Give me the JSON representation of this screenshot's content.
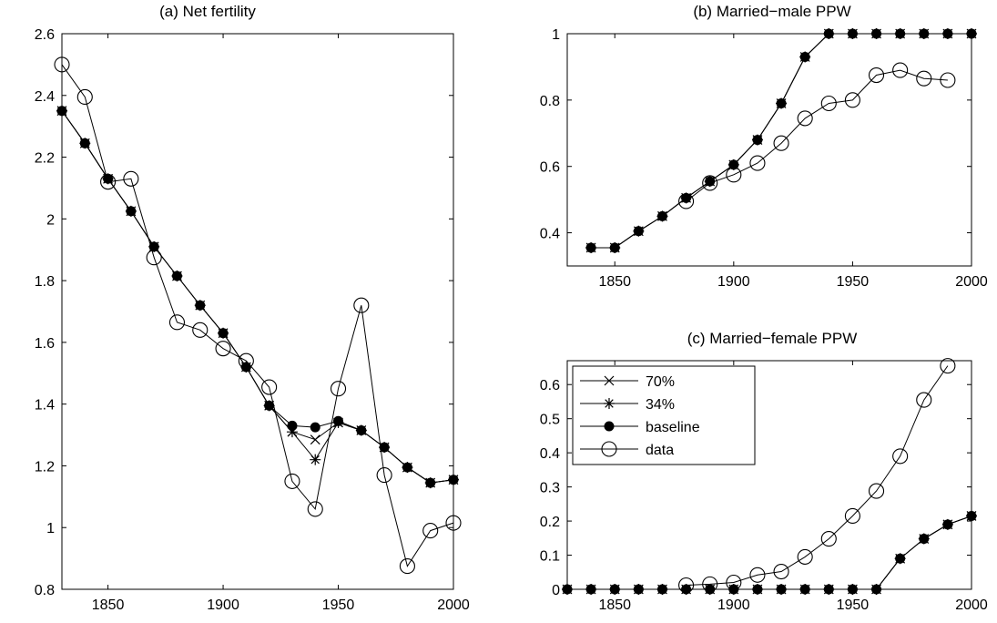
{
  "chart_data": [
    {
      "type": "line",
      "title": "(a) Net fertility",
      "xlabel": "",
      "ylabel": "",
      "xlim": [
        1830,
        2000
      ],
      "ylim": [
        0.8,
        2.6
      ],
      "xticks": [
        1850,
        1900,
        1950,
        2000
      ],
      "yticks": [
        0.8,
        1,
        1.2,
        1.4,
        1.6,
        1.8,
        2,
        2.2,
        2.4,
        2.6
      ],
      "grid": false,
      "series": [
        {
          "name": "70%",
          "marker": "x",
          "x": [
            1830,
            1840,
            1850,
            1860,
            1870,
            1880,
            1890,
            1900,
            1910,
            1920,
            1930,
            1940,
            1950,
            1960,
            1970,
            1980,
            1990,
            2000
          ],
          "y": [
            2.35,
            2.245,
            2.13,
            2.025,
            1.91,
            1.815,
            1.72,
            1.63,
            1.52,
            1.395,
            1.31,
            1.285,
            1.34,
            1.315,
            1.26,
            1.195,
            1.145,
            1.155
          ]
        },
        {
          "name": "34%",
          "marker": "star",
          "x": [
            1830,
            1840,
            1850,
            1860,
            1870,
            1880,
            1890,
            1900,
            1910,
            1920,
            1930,
            1940,
            1950,
            1960,
            1970,
            1980,
            1990,
            2000
          ],
          "y": [
            2.35,
            2.245,
            2.13,
            2.025,
            1.91,
            1.815,
            1.72,
            1.63,
            1.52,
            1.395,
            1.31,
            1.22,
            1.34,
            1.315,
            1.26,
            1.195,
            1.145,
            1.155
          ]
        },
        {
          "name": "baseline",
          "marker": "filled-circle",
          "x": [
            1830,
            1840,
            1850,
            1860,
            1870,
            1880,
            1890,
            1900,
            1910,
            1920,
            1930,
            1940,
            1950,
            1960,
            1970,
            1980,
            1990,
            2000
          ],
          "y": [
            2.35,
            2.245,
            2.13,
            2.025,
            1.91,
            1.815,
            1.72,
            1.63,
            1.52,
            1.395,
            1.33,
            1.325,
            1.345,
            1.315,
            1.26,
            1.195,
            1.145,
            1.155
          ]
        },
        {
          "name": "data",
          "marker": "open-circle",
          "x": [
            1830,
            1840,
            1850,
            1860,
            1870,
            1880,
            1890,
            1900,
            1910,
            1920,
            1930,
            1940,
            1950,
            1960,
            1970,
            1980,
            1990,
            2000
          ],
          "y": [
            2.5,
            2.395,
            2.12,
            2.13,
            1.875,
            1.665,
            1.64,
            1.58,
            1.54,
            1.455,
            1.15,
            1.06,
            1.45,
            1.72,
            1.17,
            0.875,
            0.99,
            1.015
          ]
        }
      ]
    },
    {
      "type": "line",
      "title": "(b) Married−male PPW",
      "xlabel": "",
      "ylabel": "",
      "xlim": [
        1830,
        2000
      ],
      "ylim": [
        0.3,
        1.0
      ],
      "xticks": [
        1850,
        1900,
        1950,
        2000
      ],
      "yticks": [
        0.4,
        0.6,
        0.8,
        1
      ],
      "grid": false,
      "series": [
        {
          "name": "70%",
          "marker": "x",
          "x": [
            1840,
            1850,
            1860,
            1870,
            1880,
            1890,
            1900,
            1910,
            1920,
            1930,
            1940,
            1950,
            1960,
            1970,
            1980,
            1990,
            2000
          ],
          "y": [
            0.355,
            0.355,
            0.405,
            0.45,
            0.505,
            0.555,
            0.605,
            0.68,
            0.79,
            0.93,
            1,
            1,
            1,
            1,
            1,
            1,
            1
          ]
        },
        {
          "name": "34%",
          "marker": "star",
          "x": [
            1840,
            1850,
            1860,
            1870,
            1880,
            1890,
            1900,
            1910,
            1920,
            1930,
            1940,
            1950,
            1960,
            1970,
            1980,
            1990,
            2000
          ],
          "y": [
            0.355,
            0.355,
            0.405,
            0.45,
            0.505,
            0.555,
            0.605,
            0.68,
            0.79,
            0.93,
            1,
            1,
            1,
            1,
            1,
            1,
            1
          ]
        },
        {
          "name": "baseline",
          "marker": "filled-circle",
          "x": [
            1840,
            1850,
            1860,
            1870,
            1880,
            1890,
            1900,
            1910,
            1920,
            1930,
            1940,
            1950,
            1960,
            1970,
            1980,
            1990,
            2000
          ],
          "y": [
            0.355,
            0.355,
            0.405,
            0.45,
            0.505,
            0.555,
            0.605,
            0.68,
            0.79,
            0.93,
            1,
            1,
            1,
            1,
            1,
            1,
            1
          ]
        },
        {
          "name": "data",
          "marker": "open-circle",
          "x": [
            1880,
            1890,
            1900,
            1910,
            1920,
            1930,
            1940,
            1950,
            1960,
            1970,
            1980,
            1990
          ],
          "y": [
            0.495,
            0.55,
            0.575,
            0.61,
            0.67,
            0.745,
            0.79,
            0.8,
            0.875,
            0.89,
            0.865,
            0.86
          ]
        }
      ]
    },
    {
      "type": "line",
      "title": "(c) Married−female PPW",
      "xlabel": "",
      "ylabel": "",
      "xlim": [
        1830,
        2000
      ],
      "ylim": [
        0,
        0.67
      ],
      "xticks": [
        1850,
        1900,
        1950,
        2000
      ],
      "yticks": [
        0,
        0.1,
        0.2,
        0.3,
        0.4,
        0.5,
        0.6
      ],
      "grid": false,
      "legend": {
        "placement": "top-left",
        "entries": [
          "70%",
          "34%",
          "baseline",
          "data"
        ]
      },
      "series": [
        {
          "name": "70%",
          "marker": "x",
          "x": [
            1830,
            1840,
            1850,
            1860,
            1870,
            1880,
            1890,
            1900,
            1910,
            1920,
            1930,
            1940,
            1950,
            1960,
            1970,
            1980,
            1990,
            2000
          ],
          "y": [
            0,
            0,
            0,
            0,
            0,
            0,
            0,
            0,
            0,
            0,
            0,
            0,
            0,
            0,
            0.09,
            0.148,
            0.19,
            0.215
          ]
        },
        {
          "name": "34%",
          "marker": "star",
          "x": [
            1830,
            1840,
            1850,
            1860,
            1870,
            1880,
            1890,
            1900,
            1910,
            1920,
            1930,
            1940,
            1950,
            1960,
            1970,
            1980,
            1990,
            2000
          ],
          "y": [
            0,
            0,
            0,
            0,
            0,
            0,
            0,
            0,
            0,
            0,
            0,
            0,
            0,
            0,
            0.09,
            0.148,
            0.19,
            0.215
          ]
        },
        {
          "name": "baseline",
          "marker": "filled-circle",
          "x": [
            1830,
            1840,
            1850,
            1860,
            1870,
            1880,
            1890,
            1900,
            1910,
            1920,
            1930,
            1940,
            1950,
            1960,
            1970,
            1980,
            1990,
            2000
          ],
          "y": [
            0,
            0,
            0,
            0,
            0,
            0,
            0,
            0,
            0,
            0,
            0,
            0,
            0,
            0,
            0.09,
            0.148,
            0.19,
            0.215
          ]
        },
        {
          "name": "data",
          "marker": "open-circle",
          "x": [
            1880,
            1890,
            1900,
            1910,
            1920,
            1930,
            1940,
            1950,
            1960,
            1970,
            1980,
            1990
          ],
          "y": [
            0.012,
            0.015,
            0.02,
            0.042,
            0.052,
            0.095,
            0.148,
            0.215,
            0.288,
            0.39,
            0.555,
            0.655
          ]
        }
      ]
    }
  ]
}
